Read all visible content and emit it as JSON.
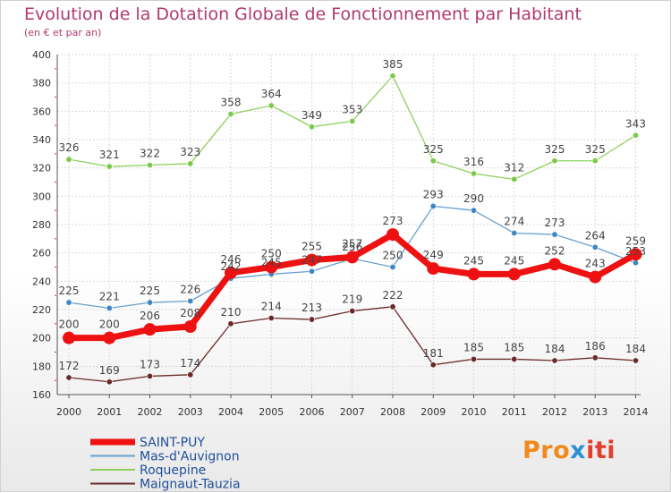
{
  "chart_data": {
    "type": "line",
    "title": "Evolution de la Dotation Globale de Fonctionnement par Habitant",
    "subtitle": "(en € et par an)",
    "x": [
      "2000",
      "2001",
      "2002",
      "2003",
      "2004",
      "2005",
      "2006",
      "2007",
      "2008",
      "2009",
      "2010",
      "2011",
      "2012",
      "2013",
      "2014"
    ],
    "y_ticks": [
      "160",
      "180",
      "200",
      "220",
      "240",
      "260",
      "280",
      "300",
      "320",
      "340",
      "360",
      "380",
      "400"
    ],
    "ylim": [
      160,
      400
    ],
    "grid": true,
    "legend_position": "bottom-left",
    "series": [
      {
        "name": "Roquepine",
        "color": "#8cd15a",
        "point_color": "#7cc94a",
        "emphasis": false,
        "values": [
          326,
          321,
          322,
          323,
          358,
          364,
          349,
          353,
          385,
          325,
          316,
          312,
          325,
          325,
          343
        ],
        "labels": [
          "326",
          "321",
          "322",
          "323",
          "358",
          "364",
          "349",
          "353",
          "385",
          "325",
          "316",
          "312",
          "325",
          "325",
          "343"
        ]
      },
      {
        "name": "Mas-d'Auvignon",
        "color": "#6aa0cc",
        "point_color": "#3f86c4",
        "emphasis": false,
        "values": [
          225,
          221,
          225,
          226,
          242,
          245,
          247,
          256,
          250,
          293,
          290,
          274,
          273,
          264,
          253
        ],
        "labels": [
          "225",
          "221",
          "225",
          "226",
          "242",
          "245",
          "247",
          "256",
          "250",
          "293",
          "290",
          "274",
          "273",
          "264",
          "253"
        ]
      },
      {
        "name": "Maignaut-Tauzia",
        "color": "#6b2a2a",
        "point_color": "#6b2a2a",
        "emphasis": false,
        "values": [
          172,
          169,
          173,
          174,
          210,
          214,
          213,
          219,
          222,
          181,
          185,
          185,
          184,
          186,
          184
        ],
        "labels": [
          "172",
          "169",
          "173",
          "174",
          "210",
          "214",
          "213",
          "219",
          "222",
          "181",
          "185",
          "185",
          "184",
          "186",
          "184"
        ]
      },
      {
        "name": "SAINT-PUY",
        "color": "#ee1111",
        "point_color": "#ee1111",
        "emphasis": true,
        "values": [
          200,
          200,
          206,
          208,
          246,
          250,
          255,
          257,
          273,
          249,
          245,
          245,
          252,
          243,
          259
        ],
        "labels": [
          "200",
          "200",
          "206",
          "208",
          "246",
          "250",
          "255",
          "257",
          "273",
          "249",
          "245",
          "245",
          "252",
          "243",
          "259"
        ]
      }
    ],
    "legend": [
      {
        "name": "SAINT-PUY",
        "color": "#ee1111",
        "emphasis": true
      },
      {
        "name": "Mas-d'Auvignon",
        "color": "#6aa0cc",
        "emphasis": false
      },
      {
        "name": "Roquepine",
        "color": "#8cd15a",
        "emphasis": false
      },
      {
        "name": "Maignaut-Tauzia",
        "color": "#6b2a2a",
        "emphasis": false
      }
    ]
  },
  "logo": {
    "part1": "Pro",
    "part2": "x",
    "part3": "iti"
  }
}
